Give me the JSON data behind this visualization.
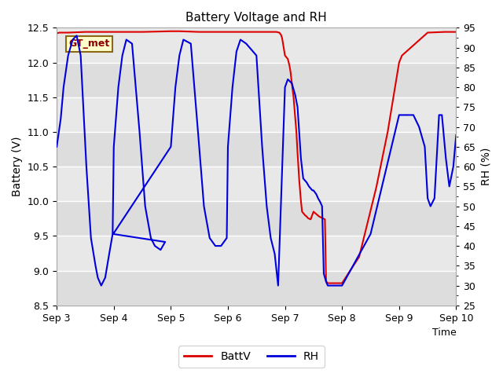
{
  "title": "Battery Voltage and RH",
  "xlabel": "Time",
  "ylabel_left": "Battery (V)",
  "ylabel_right": "RH (%)",
  "xlim": [
    0,
    7
  ],
  "ylim_left": [
    8.5,
    12.5
  ],
  "ylim_right": [
    25,
    95
  ],
  "xtick_labels": [
    "Sep 3",
    "Sep 4",
    "Sep 5",
    "Sep 6",
    "Sep 7",
    "Sep 8",
    "Sep 9",
    "Sep 10"
  ],
  "xtick_positions": [
    0,
    1,
    2,
    3,
    4,
    5,
    6,
    7
  ],
  "yticks_left": [
    8.5,
    9.0,
    9.5,
    10.0,
    10.5,
    11.0,
    11.5,
    12.0,
    12.5
  ],
  "yticks_right": [
    25,
    30,
    35,
    40,
    45,
    50,
    55,
    60,
    65,
    70,
    75,
    80,
    85,
    90,
    95
  ],
  "color_batt": "#dd0000",
  "color_rh": "#0000dd",
  "bg_color": "#e8e8e8",
  "bg_stripe_color": "#d8d8d8",
  "annotation_text": "GT_met",
  "legend_batt": "BattV",
  "legend_rh": "RH",
  "batt_x": [
    0.0,
    0.05,
    0.2,
    0.5,
    1.0,
    1.5,
    2.0,
    2.15,
    2.5,
    3.0,
    3.5,
    3.75,
    3.85,
    3.9,
    3.93,
    3.95,
    3.97,
    4.0,
    4.02,
    4.05,
    4.08,
    4.1,
    4.12,
    4.15,
    4.18,
    4.2,
    4.22,
    4.25,
    4.28,
    4.3,
    4.35,
    4.38,
    4.4,
    4.42,
    4.45,
    4.5,
    4.6,
    4.65,
    4.7,
    4.72,
    4.75,
    5.0,
    5.3,
    5.6,
    5.8,
    5.9,
    6.0,
    6.05,
    6.5,
    6.8,
    7.0
  ],
  "batt_y": [
    12.42,
    12.43,
    12.43,
    12.44,
    12.44,
    12.44,
    12.45,
    12.45,
    12.44,
    12.44,
    12.44,
    12.44,
    12.44,
    12.43,
    12.4,
    12.35,
    12.25,
    12.1,
    12.08,
    12.05,
    11.95,
    11.85,
    11.7,
    11.5,
    11.2,
    11.0,
    10.7,
    10.3,
    10.0,
    9.85,
    9.8,
    9.78,
    9.76,
    9.75,
    9.74,
    9.85,
    9.78,
    9.76,
    9.74,
    8.85,
    8.82,
    8.82,
    9.2,
    10.2,
    11.0,
    11.5,
    12.0,
    12.1,
    12.43,
    12.44,
    12.44
  ],
  "rh_x": [
    0.0,
    0.07,
    0.12,
    0.2,
    0.28,
    0.35,
    0.42,
    0.52,
    0.6,
    0.68,
    0.72,
    0.78,
    0.85,
    0.92,
    0.98,
    1.0,
    1.08,
    1.15,
    1.22,
    1.32,
    1.45,
    1.55,
    1.65,
    1.72,
    1.82,
    1.9,
    0.99,
    2.0,
    2.08,
    2.15,
    2.22,
    2.35,
    2.48,
    2.58,
    2.68,
    2.78,
    2.88,
    2.98,
    3.0,
    3.08,
    3.15,
    3.22,
    3.32,
    3.5,
    3.6,
    3.68,
    3.75,
    3.82,
    3.88,
    4.0,
    4.05,
    4.12,
    4.18,
    4.22,
    4.28,
    4.32,
    4.38,
    4.42,
    4.48,
    4.5,
    4.55,
    4.58,
    4.62,
    4.65,
    4.68,
    4.72,
    4.75,
    4.78,
    4.82,
    4.85,
    4.88,
    4.9,
    4.92,
    4.95,
    5.0,
    5.5,
    6.0,
    6.25,
    6.35,
    6.45,
    6.5,
    6.55,
    6.62,
    6.7,
    6.75,
    6.82,
    6.88,
    6.95,
    7.0,
    7.05,
    7.1
  ],
  "rh_y": [
    65,
    72,
    80,
    88,
    92,
    93,
    88,
    60,
    42,
    35,
    32,
    30,
    32,
    38,
    43,
    65,
    80,
    88,
    92,
    91,
    69,
    50,
    42,
    40,
    39,
    41,
    43,
    65,
    80,
    88,
    92,
    91,
    68,
    50,
    42,
    40,
    40,
    42,
    65,
    80,
    89,
    92,
    91,
    88,
    65,
    50,
    42,
    38,
    30,
    80,
    82,
    81,
    78,
    75,
    62,
    57,
    56,
    55,
    54,
    54,
    53,
    52,
    51,
    50,
    33,
    31,
    30,
    30,
    30,
    30,
    30,
    30,
    30,
    30,
    30,
    43,
    73,
    73,
    70,
    65,
    52,
    50,
    52,
    73,
    73,
    62,
    55,
    60,
    68,
    63,
    68
  ]
}
